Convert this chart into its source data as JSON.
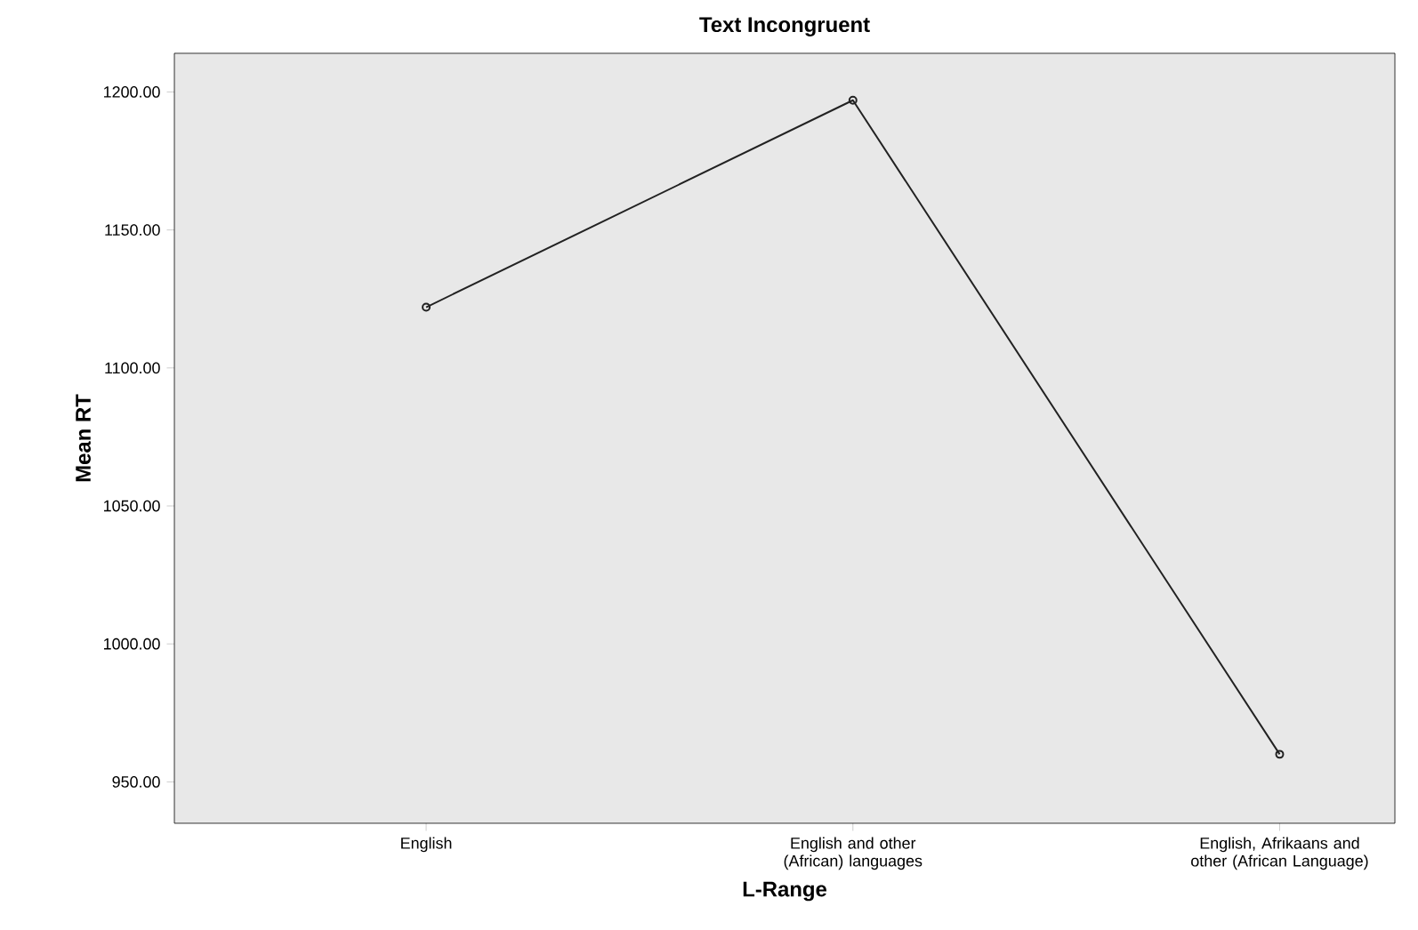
{
  "chart_data": {
    "type": "line",
    "title": "Text Incongruent",
    "xlabel": "L-Range",
    "ylabel": "Mean RT",
    "categories": [
      "English",
      "English and other (African) languages",
      "English, Afrikaans and other (African Language)"
    ],
    "values": [
      1122,
      1197,
      960
    ],
    "color": "#222222",
    "marker": "circle",
    "line_style": "solid",
    "ylim": [
      935,
      1214
    ],
    "yticks": [
      {
        "value": 950,
        "label": "950.00"
      },
      {
        "value": 1000,
        "label": "1000.00"
      },
      {
        "value": 1050,
        "label": "1050.00"
      },
      {
        "value": 1100,
        "label": "1100.00"
      },
      {
        "value": 1150,
        "label": "1150.00"
      },
      {
        "value": 1200,
        "label": "1200.00"
      }
    ]
  }
}
